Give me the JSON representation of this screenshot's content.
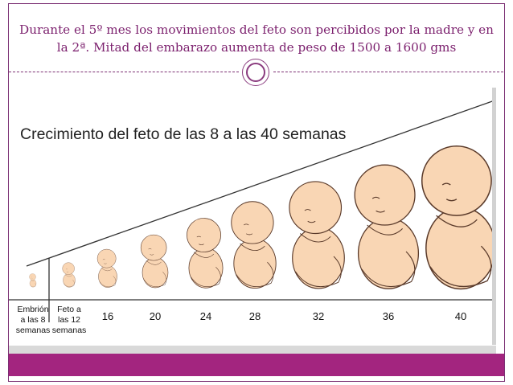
{
  "slide": {
    "title": "Durante el 5º mes los movimientos del feto son percibidos por la madre y en la 2ª. Mitad del embarazo aumenta de peso de 1500 a 1600 gms",
    "colors": {
      "title": "#7b1f6d",
      "footer": "#a3257f",
      "ornament": "#8b3c7f"
    }
  },
  "figure": {
    "title": "Crecimiento del feto de las 8 a las 40 semanas",
    "stages": [
      {
        "label_lines": [
          "Embrión",
          "a las 8",
          "semanas"
        ],
        "week": 8
      },
      {
        "label_lines": [
          "Feto a",
          "las 12",
          "semanas"
        ],
        "week": 12
      },
      {
        "label_lines": [
          "16"
        ],
        "week": 16
      },
      {
        "label_lines": [
          "20"
        ],
        "week": 20
      },
      {
        "label_lines": [
          "24"
        ],
        "week": 24
      },
      {
        "label_lines": [
          "28"
        ],
        "week": 28
      },
      {
        "label_lines": [
          "32"
        ],
        "week": 32
      },
      {
        "label_lines": [
          "36"
        ],
        "week": 36
      },
      {
        "label_lines": [
          "40"
        ],
        "week": 40
      }
    ]
  }
}
